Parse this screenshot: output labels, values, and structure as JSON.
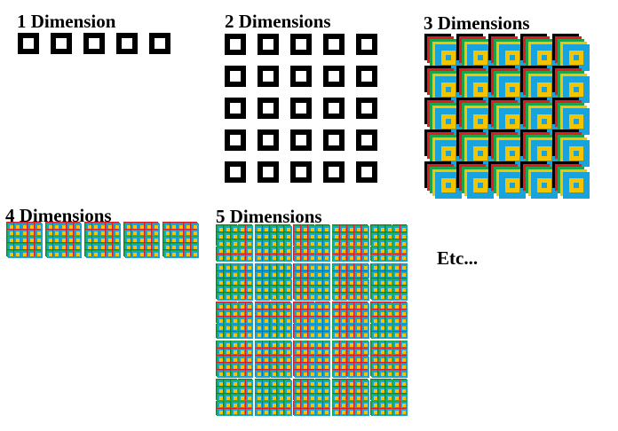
{
  "labels": {
    "d1": "1 Dimension",
    "d2": "2 Dimensions",
    "d3": "3 Dimensions",
    "d4": "4 Dimensions",
    "d5": "5 Dimensions",
    "etc": "Etc..."
  },
  "panels": [
    {
      "id": "d1",
      "kind": "squares",
      "cols": 5,
      "rows": 1
    },
    {
      "id": "d2",
      "kind": "squares",
      "cols": 5,
      "rows": 5
    },
    {
      "id": "d3",
      "kind": "layered",
      "cols": 5,
      "rows": 5
    },
    {
      "id": "d4",
      "kind": "nested",
      "cols": 5,
      "rows": 1
    },
    {
      "id": "d5",
      "kind": "nested",
      "cols": 5,
      "rows": 5
    }
  ],
  "colors": {
    "ink": "#000000",
    "layers": [
      "#000000",
      "#e21b23",
      "#1aa54b",
      "#f5c400",
      "#19a3dc"
    ],
    "inner": "#f5c400"
  }
}
